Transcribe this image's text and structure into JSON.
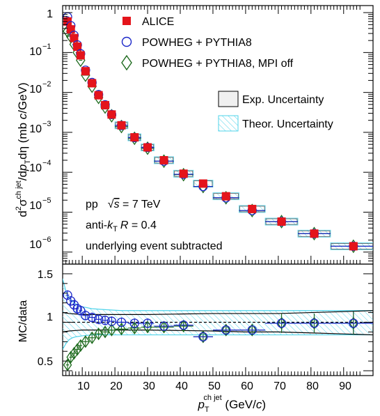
{
  "chart_data": [
    {
      "type": "scatter",
      "ylabel_parts": {
        "d2": "d",
        "sup2": "2",
        "sigma": "σ",
        "supjet": "ch jet",
        "mid": "/d",
        "p": "p",
        "subT": "T",
        "eta": "dη",
        "unit_a": " (mb ",
        "unit_c": "c",
        "unit_b": "/GeV)"
      },
      "log_y": true,
      "yrange": [
        5e-07,
        1.5
      ],
      "xrange": [
        4,
        99
      ],
      "ytick_labels": [
        {
          "base": "1",
          "exp": ""
        },
        {
          "base": "10",
          "exp": "−1"
        },
        {
          "base": "10",
          "exp": "−2"
        },
        {
          "base": "10",
          "exp": "−3"
        },
        {
          "base": "10",
          "exp": "−4"
        },
        {
          "base": "10",
          "exp": "−5"
        },
        {
          "base": "10",
          "exp": "−6"
        }
      ],
      "ytick_values": [
        1,
        0.1,
        0.01,
        0.001,
        0.0001,
        1e-05,
        1e-06
      ],
      "legend": [
        {
          "name": "ALICE",
          "marker": "filled-square",
          "color": "#e4141b"
        },
        {
          "name": "POWHEG + PYTHIA8",
          "marker": "open-circle",
          "color": "#1a26c8"
        },
        {
          "name": "POWHEG + PYTHIA8, MPI off",
          "marker": "open-diamond",
          "color": "#1d6a1d"
        }
      ],
      "uncertainty_legend": [
        {
          "name": "Exp. Uncertainty",
          "style": "box"
        },
        {
          "name": "Theor. Uncertainty",
          "style": "hatched"
        }
      ],
      "annotations": {
        "pp": "pp",
        "sqrt": "√",
        "s": "s",
        "energy": " = 7 TeV",
        "algo_a": "anti-",
        "algo_k": "k",
        "algo_T": "T",
        "algo_R": "R",
        "algo_b": " = 0.4",
        "ue": "underlying event subtracted"
      },
      "bins": [
        {
          "x": 5.5,
          "xl": 5,
          "xh": 6
        },
        {
          "x": 6.5,
          "xl": 6,
          "xh": 7
        },
        {
          "x": 7.5,
          "xl": 7,
          "xh": 8
        },
        {
          "x": 8.5,
          "xl": 8,
          "xh": 9
        },
        {
          "x": 9.5,
          "xl": 9,
          "xh": 10
        },
        {
          "x": 11,
          "xl": 10,
          "xh": 12
        },
        {
          "x": 13,
          "xl": 12,
          "xh": 14
        },
        {
          "x": 15,
          "xl": 14,
          "xh": 16
        },
        {
          "x": 17,
          "xl": 16,
          "xh": 18
        },
        {
          "x": 19,
          "xl": 18,
          "xh": 20
        },
        {
          "x": 22,
          "xl": 20,
          "xh": 24
        },
        {
          "x": 26,
          "xl": 24,
          "xh": 28
        },
        {
          "x": 30,
          "xl": 28,
          "xh": 32
        },
        {
          "x": 35,
          "xl": 32,
          "xh": 38
        },
        {
          "x": 41,
          "xl": 38,
          "xh": 44
        },
        {
          "x": 47,
          "xl": 44,
          "xh": 50
        },
        {
          "x": 54,
          "xl": 50,
          "xh": 58
        },
        {
          "x": 62,
          "xl": 58,
          "xh": 66
        },
        {
          "x": 71,
          "xl": 66,
          "xh": 76
        },
        {
          "x": 81,
          "xl": 76,
          "xh": 86
        },
        {
          "x": 93,
          "xl": 86,
          "xh": 100
        }
      ],
      "alice": [
        0.6,
        0.38,
        0.23,
        0.14,
        0.085,
        0.034,
        0.017,
        0.0085,
        0.0048,
        0.0028,
        0.0015,
        0.00075,
        0.00042,
        0.0002,
        9.2e-05,
        5.2e-05,
        2.5e-05,
        1.2e-05,
        5.8e-06,
        2.9e-06,
        1.4e-06
      ],
      "powheg": [
        0.78,
        0.47,
        0.27,
        0.155,
        0.093,
        0.036,
        0.0177,
        0.0088,
        0.0049,
        0.0028,
        0.00149,
        0.00074,
        0.00042,
        0.00019,
        8.9e-05,
        4.4e-05,
        2.3e-05,
        1.1e-05,
        5.8e-06,
        2.9e-06,
        1.4e-06
      ],
      "mpioff": [
        0.34,
        0.25,
        0.16,
        0.1,
        0.064,
        0.027,
        0.0143,
        0.0075,
        0.0043,
        0.0026,
        0.0014,
        0.00071,
        0.0004,
        0.00019,
        8.7e-05,
        4.4e-05,
        2.3e-05,
        1.1e-05,
        5.8e-06,
        2.9e-06,
        1.4e-06
      ]
    },
    {
      "type": "scatter",
      "ylabel": "MC/data",
      "xlabel_parts": {
        "p": "p",
        "subT": "T",
        "supjet": "ch jet",
        "unit_a": " (GeV/",
        "unit_c": "c",
        "unit_b": ")"
      },
      "yrange": [
        0.45,
        1.6
      ],
      "xrange": [
        4,
        99
      ],
      "ytick_labels": [
        "0.5",
        "1",
        "1.5"
      ],
      "ytick_values": [
        0.5,
        1,
        1.5
      ],
      "xtick_labels": [
        "10",
        "20",
        "30",
        "40",
        "50",
        "60",
        "70",
        "80",
        "90"
      ],
      "xtick_values": [
        10,
        20,
        30,
        40,
        50,
        60,
        70,
        80,
        90
      ],
      "reference_line": 1,
      "ratio_powheg": [
        1.28,
        1.22,
        1.18,
        1.14,
        1.12,
        1.07,
        1.05,
        1.03,
        1.02,
        1.01,
        1.0,
        0.99,
        0.99,
        0.96,
        0.97,
        0.85,
        0.92,
        0.92,
        0.99,
        0.99,
        0.99
      ],
      "ratio_mpioff": [
        0.56,
        0.64,
        0.68,
        0.72,
        0.76,
        0.8,
        0.84,
        0.88,
        0.9,
        0.92,
        0.93,
        0.94,
        0.95,
        0.95,
        0.96,
        0.85,
        0.92,
        0.92,
        0.99,
        0.99,
        0.99
      ],
      "ratio_err": [
        0.05,
        0.05,
        0.05,
        0.05,
        0.05,
        0.05,
        0.05,
        0.05,
        0.05,
        0.05,
        0.05,
        0.05,
        0.05,
        0.05,
        0.05,
        0.05,
        0.05,
        0.06,
        0.1,
        0.1,
        0.12
      ],
      "exp_band_x": [
        4,
        6,
        8,
        10,
        13,
        17,
        22,
        30,
        40,
        50,
        60,
        70,
        80,
        90,
        99
      ],
      "exp_band_up": [
        1.1,
        1.09,
        1.085,
        1.08,
        1.08,
        1.08,
        1.08,
        1.08,
        1.085,
        1.09,
        1.09,
        1.09,
        1.1,
        1.11,
        1.12
      ],
      "exp_band_lo": [
        0.9,
        0.91,
        0.915,
        0.92,
        0.92,
        0.92,
        0.92,
        0.92,
        0.915,
        0.91,
        0.9,
        0.9,
        0.89,
        0.88,
        0.87
      ],
      "theo_band_x": [
        4,
        5,
        6,
        7,
        8,
        10,
        13,
        17,
        22,
        30,
        40,
        50,
        60,
        70,
        80,
        90,
        99
      ],
      "theo_band_up": [
        1.45,
        1.32,
        1.25,
        1.22,
        1.19,
        1.16,
        1.14,
        1.13,
        1.12,
        1.12,
        1.12,
        1.12,
        1.12,
        1.12,
        1.12,
        1.12,
        1.12
      ],
      "theo_band_lo": [
        0.72,
        0.78,
        0.82,
        0.84,
        0.85,
        0.86,
        0.87,
        0.87,
        0.87,
        0.87,
        0.87,
        0.87,
        0.87,
        0.87,
        0.87,
        0.87,
        0.87
      ],
      "colors": {
        "exp_line": "#000000",
        "theo": "#4fd3ea",
        "dash": "#000000"
      }
    }
  ]
}
